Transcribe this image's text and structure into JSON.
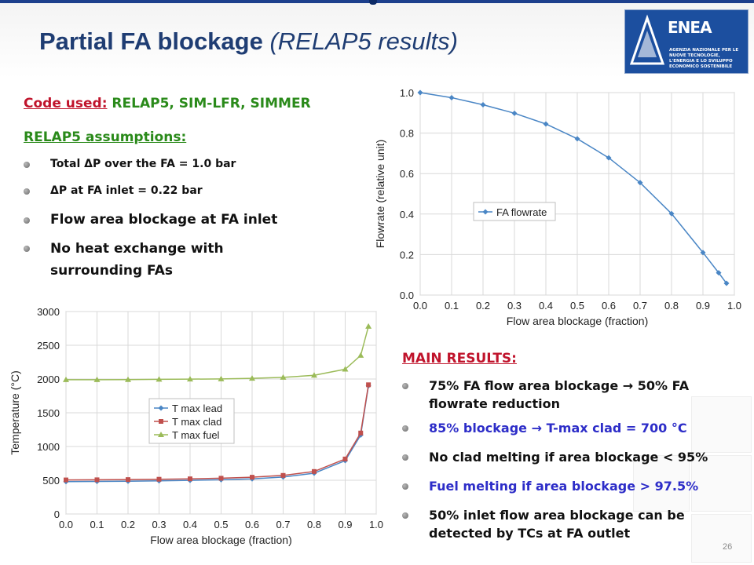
{
  "slide": {
    "title": "Partial FA blockage",
    "subtitle": "(RELAP5 results)",
    "slide_number": "26"
  },
  "logo": {
    "name": "ENEA",
    "tagline": "AGENZIA NAZIONALE PER LE NUOVE TECNOLOGIE, L'ENERGIA E LO SVILUPPO ECONOMICO SOSTENIBILE"
  },
  "codes": {
    "label": "Code used:",
    "value": " RELAP5, SIM-LFR, SIMMER"
  },
  "assumptions": {
    "title": "RELAP5 assumptions:",
    "items": [
      "Total ΔP over the FA = 1.0 bar",
      "ΔP at FA inlet = 0.22 bar",
      "Flow area blockage at FA inlet",
      "No heat exchange with surrounding FAs"
    ]
  },
  "results": {
    "title": "MAIN RESULTS:",
    "items": [
      {
        "pre": "75% FA flow area blockage ",
        "arrow": "→",
        "post": " 50% FA flowrate reduction",
        "color": "#111111"
      },
      {
        "pre": "85% blockage ",
        "arrow": "→",
        "post": " T-max clad = 700 °C",
        "color": "#2d2dc8"
      },
      {
        "pre": "No clad melting if area blockage < 95%",
        "arrow": "",
        "post": "",
        "color": "#111111"
      },
      {
        "pre": "Fuel melting if area blockage > 97.5%",
        "arrow": "",
        "post": "",
        "color": "#2d2dc8"
      },
      {
        "pre": "50% inlet flow area blockage can be detected by TCs at FA outlet",
        "arrow": "",
        "post": "",
        "color": "#111111"
      }
    ]
  },
  "chart_data": [
    {
      "type": "line",
      "xlabel": "Flow area blockage (fraction)",
      "ylabel": "Flowrate (relative unit)",
      "xlim": [
        0,
        1
      ],
      "ylim": [
        0,
        1
      ],
      "xticks": [
        "0.0",
        "0.1",
        "0.2",
        "0.3",
        "0.4",
        "0.5",
        "0.6",
        "0.7",
        "0.8",
        "0.9",
        "1.0"
      ],
      "yticks": [
        "0.0",
        "0.2",
        "0.4",
        "0.6",
        "0.8",
        "1.0"
      ],
      "grid": true,
      "legend_position": "middle-left",
      "series": [
        {
          "name": "FA flowrate",
          "color": "#4a86c5",
          "marker": "diamond",
          "x": [
            0,
            0.1,
            0.2,
            0.3,
            0.4,
            0.5,
            0.6,
            0.7,
            0.8,
            0.9,
            0.95,
            0.975
          ],
          "y": [
            1.0,
            0.975,
            0.94,
            0.898,
            0.845,
            0.772,
            0.678,
            0.555,
            0.402,
            0.21,
            0.11,
            0.058
          ]
        }
      ]
    },
    {
      "type": "line",
      "xlabel": "Flow area blockage (fraction)",
      "ylabel": "Temperature (°C)",
      "xlim": [
        0,
        1
      ],
      "ylim": [
        0,
        3000
      ],
      "xticks": [
        "0.0",
        "0.1",
        "0.2",
        "0.3",
        "0.4",
        "0.5",
        "0.6",
        "0.7",
        "0.8",
        "0.9",
        "1.0"
      ],
      "yticks": [
        "0",
        "500",
        "1000",
        "1500",
        "2000",
        "2500",
        "3000"
      ],
      "grid": true,
      "legend_position": "middle-left",
      "series": [
        {
          "name": "T max lead",
          "color": "#4a86c5",
          "marker": "diamond",
          "x": [
            0,
            0.1,
            0.2,
            0.3,
            0.4,
            0.5,
            0.6,
            0.7,
            0.8,
            0.9,
            0.95,
            0.975
          ],
          "y": [
            480,
            482,
            486,
            492,
            498,
            507,
            520,
            548,
            605,
            790,
            1170,
            1900
          ]
        },
        {
          "name": "T max clad",
          "color": "#c0504d",
          "marker": "square",
          "x": [
            0,
            0.1,
            0.2,
            0.3,
            0.4,
            0.5,
            0.6,
            0.7,
            0.8,
            0.9,
            0.95,
            0.975
          ],
          "y": [
            505,
            507,
            510,
            515,
            521,
            530,
            545,
            572,
            630,
            815,
            1200,
            1915
          ]
        },
        {
          "name": "T max fuel",
          "color": "#9bbb59",
          "marker": "triangle",
          "x": [
            0,
            0.1,
            0.2,
            0.3,
            0.4,
            0.5,
            0.6,
            0.7,
            0.8,
            0.9,
            0.95,
            0.975
          ],
          "y": [
            1990,
            1990,
            1992,
            1995,
            1998,
            2002,
            2010,
            2025,
            2055,
            2145,
            2350,
            2780
          ]
        }
      ]
    }
  ]
}
